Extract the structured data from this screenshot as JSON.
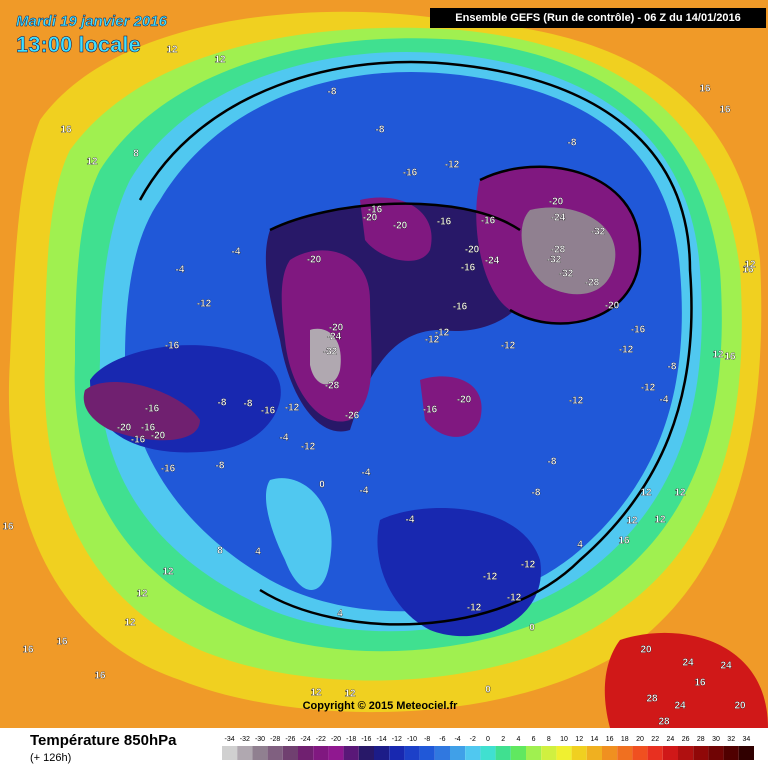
{
  "header": {
    "date": "Mardi 19 janvier 2016",
    "time": "13:00 locale",
    "run": "Ensemble GEFS  (Run de contrôle)  -  06 Z du 14/01/2016"
  },
  "footer": {
    "title": "Température 850hPa",
    "lead": "(+ 126h)",
    "copyright": "Copyright © 2015 Meteociel.fr"
  },
  "legend": {
    "ticks": [
      -34,
      -32,
      -30,
      -28,
      -26,
      -24,
      -22,
      -20,
      -18,
      -16,
      -14,
      -12,
      -10,
      -8,
      -6,
      -4,
      -2,
      0,
      2,
      4,
      6,
      8,
      10,
      12,
      14,
      16,
      18,
      20,
      22,
      24,
      26,
      28,
      30,
      32,
      34
    ],
    "colors": [
      "#d0d0d0",
      "#b0a8b0",
      "#908090",
      "#806080",
      "#704070",
      "#702070",
      "#801880",
      "#901890",
      "#5a1878",
      "#281868",
      "#1c1c88",
      "#1828b0",
      "#1c40c8",
      "#2058d8",
      "#3078e0",
      "#40a0e8",
      "#50c8f0",
      "#40e0d0",
      "#40e090",
      "#60e860",
      "#a0f050",
      "#d0f040",
      "#f0f030",
      "#f0d020",
      "#f0b020",
      "#f09020",
      "#f07020",
      "#f05020",
      "#e83020",
      "#d01818",
      "#b01010",
      "#900808",
      "#700404",
      "#500000",
      "#300000"
    ]
  },
  "contour_labels": [
    "-8",
    "-8",
    "-12",
    "-8",
    "-16",
    "-16",
    "-20",
    "-20",
    "-16",
    "-16",
    "-20",
    "-24",
    "-16",
    "-20",
    "-24",
    "-32",
    "-28",
    "-32",
    "-32",
    "-28",
    "-20",
    "-16",
    "-12",
    "-20",
    "-12",
    "-16",
    "-12",
    "-12",
    "-20",
    "-24",
    "-32",
    "-28",
    "-26",
    "-16",
    "-20",
    "-12",
    "-12",
    "-16",
    "-16",
    "-8",
    "-8",
    "-16",
    "-12",
    "-20",
    "-16",
    "-20",
    "-16",
    "-16",
    "-8",
    "-12",
    "-4",
    "-4",
    "-4",
    "-8",
    "-12",
    "-12",
    "-12",
    "-12",
    "-8",
    "-4",
    "0",
    "0",
    "0",
    "4",
    "4",
    "8",
    "12",
    "12",
    "12",
    "16",
    "16",
    "16",
    "12",
    "12",
    "16",
    "12",
    "16",
    "8",
    "12",
    "12",
    "16",
    "16",
    "20",
    "24",
    "20",
    "28",
    "24",
    "28",
    "24",
    "16",
    "12",
    "12",
    "12",
    "12",
    "16",
    "4",
    "-4",
    "-8",
    "16",
    "12",
    "16",
    "12",
    "-4",
    "-4",
    "-12"
  ]
}
